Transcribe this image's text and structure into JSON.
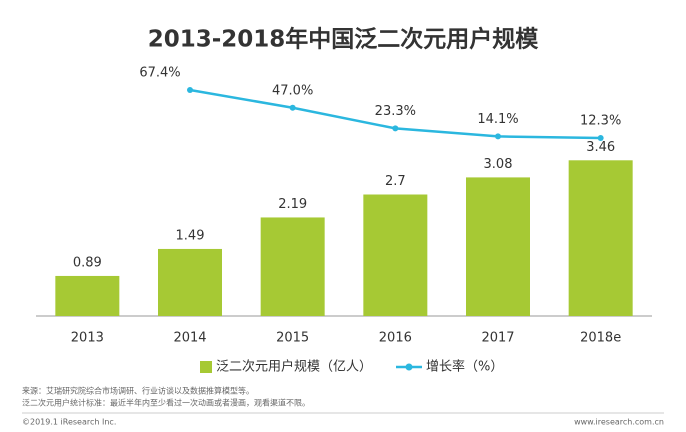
{
  "chart_data": {
    "type": "bar_line",
    "title": "2013-2018年中国泛二次元用户规模",
    "categories": [
      "2013",
      "2014",
      "2015",
      "2016",
      "2017",
      "2018e"
    ],
    "series": [
      {
        "name": "泛二次元用户规模（亿人）",
        "color": "#a6c934",
        "type": "bar",
        "values": [
          0.89,
          1.49,
          2.19,
          2.7,
          3.08,
          3.46
        ]
      },
      {
        "name": "增长率（%）",
        "color": "#2bb7df",
        "type": "line",
        "values": [
          null,
          67.4,
          47.0,
          23.3,
          14.1,
          12.3
        ],
        "value_labels": [
          null,
          "67.4%",
          "47.0%",
          "23.3%",
          "14.1%",
          "12.3%"
        ]
      }
    ],
    "notes": [
      "来源：艾瑞研究院综合市场调研、行业访谈以及数据推算模型等。",
      "泛二次元用户统计标准：最近半年内至少看过一次动画或者漫画，观看渠道不限。"
    ],
    "copyright": "©2019.1 iResearch Inc.",
    "website": "www.iresearch.com.cn"
  }
}
